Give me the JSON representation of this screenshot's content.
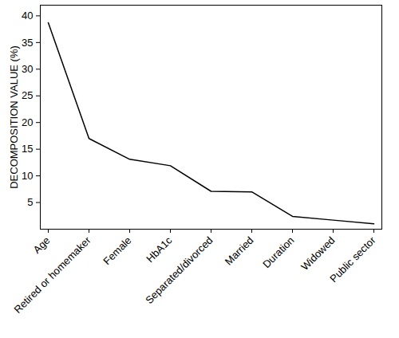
{
  "chart_data": {
    "type": "line",
    "y_label": "DECOMPOSITION VALUE (%)",
    "categories": [
      "Age",
      "Retired or homemaker",
      "Female",
      "HbA1c",
      "Separated/divorced",
      "Married",
      "Duration",
      "Widowed",
      "Public sector"
    ],
    "values": [
      38.7,
      17.0,
      13.1,
      11.9,
      7.1,
      7.0,
      2.4,
      1.7,
      1.0
    ],
    "color": "#000000",
    "ylim": [
      0,
      42
    ],
    "yticks": [
      5,
      10,
      15,
      20,
      25,
      30,
      35,
      40
    ],
    "grid": false
  }
}
